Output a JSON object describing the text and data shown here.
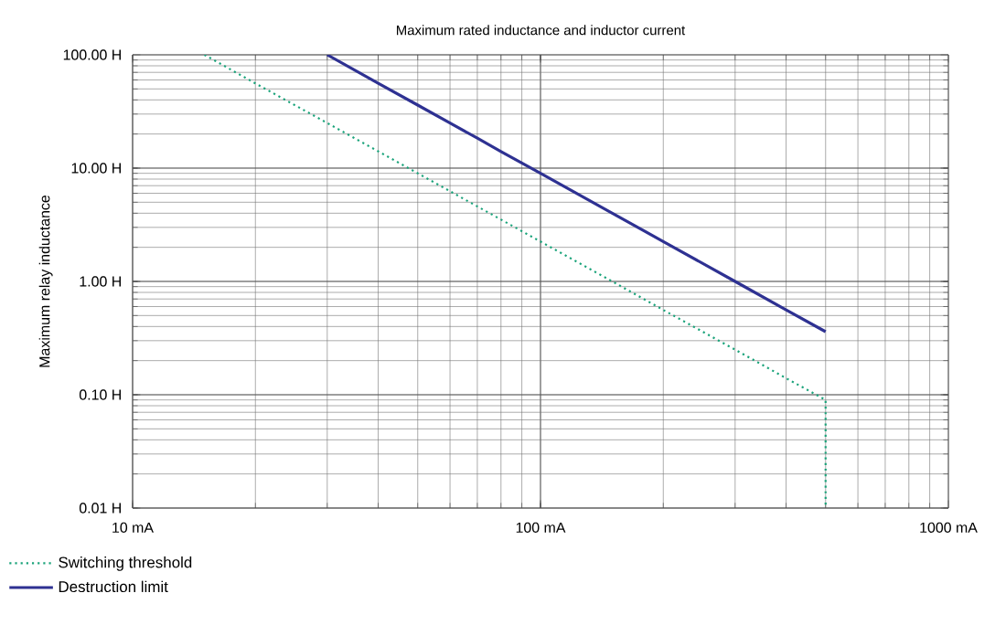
{
  "chart_data": {
    "type": "line",
    "title": "Maximum rated inductance and inductor current",
    "ylabel": "Maximum relay inductance",
    "log": "xy",
    "grid": true,
    "legend": "bottom left",
    "xlim": [
      10,
      1000
    ],
    "ylim": [
      0.01,
      100
    ],
    "xticks": [
      {
        "value": 10,
        "label": "10 mA"
      },
      {
        "value": 100,
        "label": "100 mA"
      },
      {
        "value": 1000,
        "label": "1000 mA"
      }
    ],
    "yticks": [
      {
        "value": 0.01,
        "label": "0.01 H"
      },
      {
        "value": 0.1,
        "label": "0.10 H"
      },
      {
        "value": 1,
        "label": "1.00 H"
      },
      {
        "value": 10,
        "label": "10.00 H"
      },
      {
        "value": 100,
        "label": "100.00 H"
      }
    ],
    "series": [
      {
        "name": "Switching threshold",
        "color": "#1aa37a",
        "line_style": "dotted",
        "x": [
          15,
          20,
          30,
          50,
          100,
          150,
          200,
          300,
          400,
          500,
          500
        ],
        "values": [
          100,
          56,
          25,
          9,
          2.25,
          1.0,
          0.56,
          0.25,
          0.14,
          0.09,
          0.01
        ]
      },
      {
        "name": "Destruction limit",
        "color": "#2e3192",
        "line_style": "solid",
        "x": [
          30,
          40,
          50,
          60,
          70,
          80,
          100,
          150,
          200,
          300,
          400,
          500
        ],
        "values": [
          100,
          56,
          36,
          25,
          18.4,
          14,
          9,
          4,
          2.25,
          1.0,
          0.56,
          0.36
        ]
      }
    ]
  }
}
